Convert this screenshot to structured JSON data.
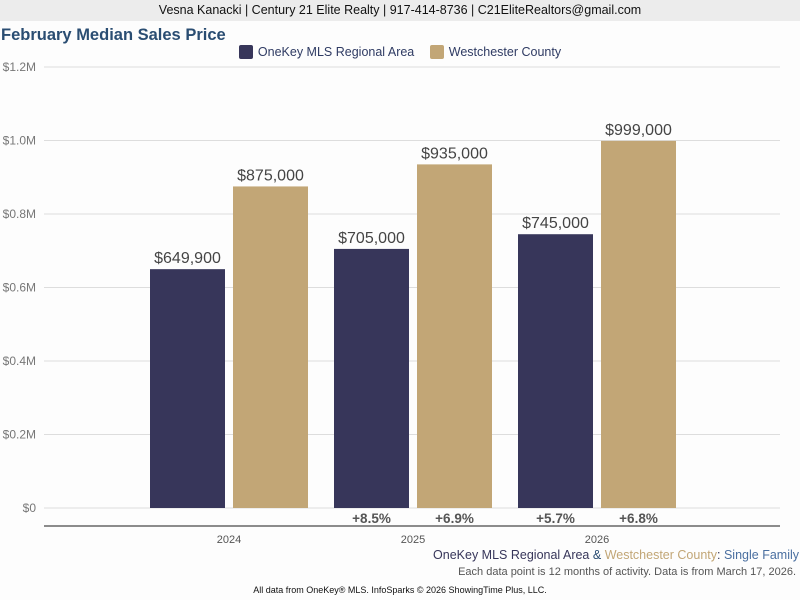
{
  "header": {
    "contact_line": "Vesna Kanacki | Century 21 Elite Realty | 917-414-8736 | C21EliteRealtors@gmail.com"
  },
  "colors": {
    "series1": "#37365a",
    "series2": "#c2a676",
    "title": "#2a4d72",
    "grid": "#dddddd",
    "axis": "#666666"
  },
  "chart_data": {
    "type": "bar",
    "title": "February Median Sales Price",
    "xlabel": "",
    "ylabel": "",
    "categories": [
      "2024",
      "2025",
      "2026"
    ],
    "series": [
      {
        "name": "OneKey MLS Regional Area",
        "values": [
          649900,
          705000,
          745000
        ],
        "labels": [
          "$649,900",
          "$705,000",
          "$745,000"
        ],
        "changes": [
          "",
          "+8.5%",
          "+5.7%"
        ]
      },
      {
        "name": "Westchester County",
        "values": [
          875000,
          935000,
          999000
        ],
        "labels": [
          "$875,000",
          "$935,000",
          "$999,000"
        ],
        "changes": [
          "",
          "+6.9%",
          "+6.8%"
        ]
      }
    ],
    "ylim": [
      0,
      1200000
    ],
    "yticks": [
      0,
      200000,
      400000,
      600000,
      800000,
      1000000,
      1200000
    ],
    "ytick_labels": [
      "$0",
      "$0.2M",
      "$0.4M",
      "$0.6M",
      "$0.8M",
      "$1.0M",
      "$1.2M"
    ],
    "grid": true,
    "legend_position": "top-center"
  },
  "footer": {
    "series_part1": "OneKey MLS Regional Area",
    "amp": " & ",
    "series_part2": "Westchester County",
    "colon": ": ",
    "property_type": "Single Family",
    "note": "Each data point is 12 months of activity. Data is from March 17, 2026.",
    "credit": "All data from OneKey® MLS. InfoSparks © 2026 ShowingTime Plus, LLC."
  }
}
